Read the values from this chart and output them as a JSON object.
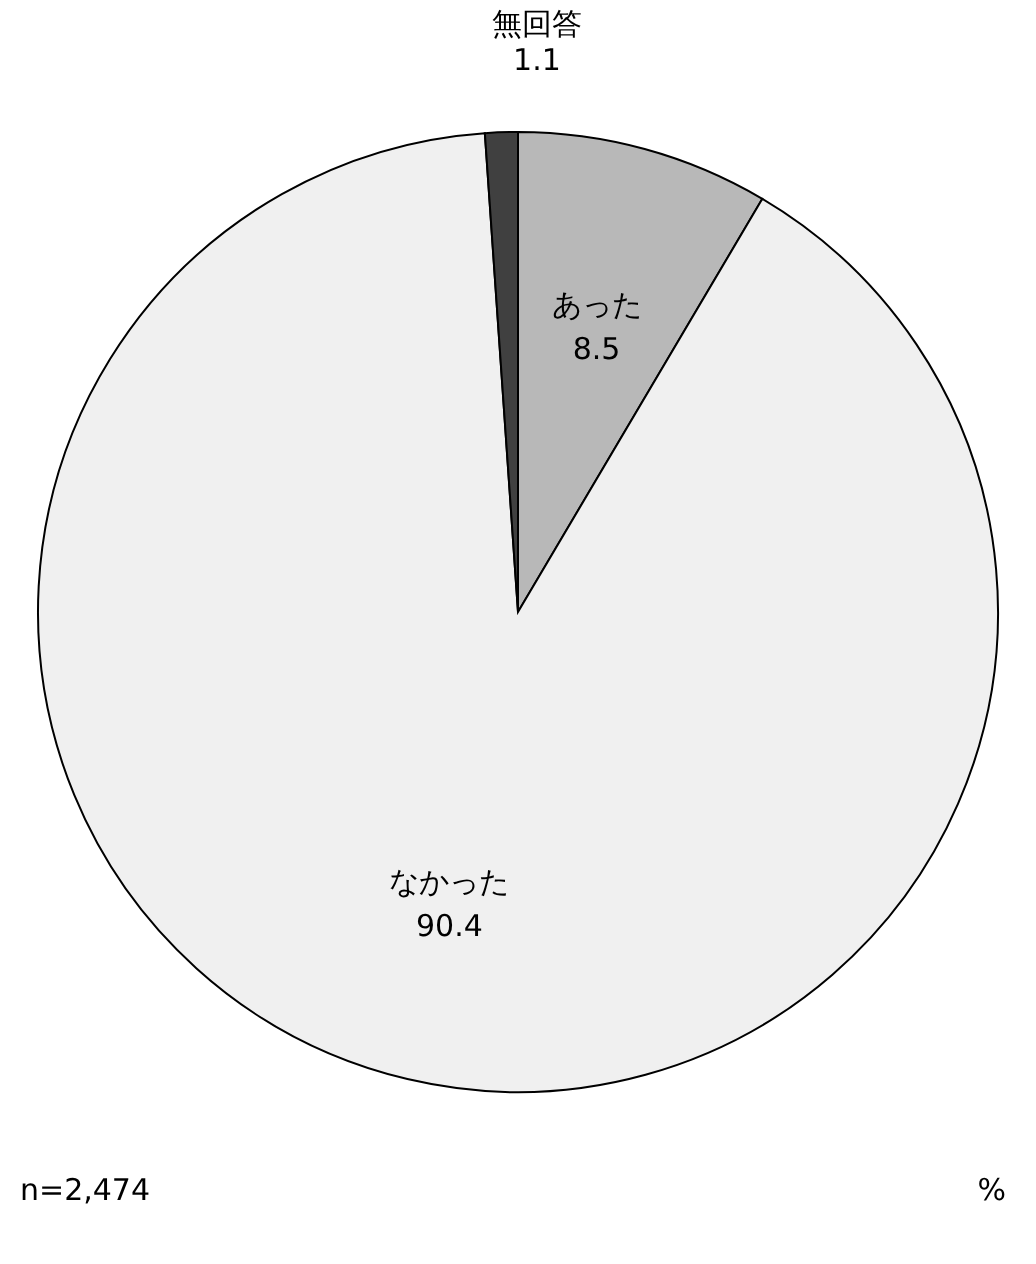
{
  "chart_data": {
    "type": "pie",
    "categories": [
      "あった",
      "なかった",
      "無回答"
    ],
    "values": [
      8.5,
      90.4,
      1.1
    ],
    "colors": [
      "#b8b8b8",
      "#f0f0f0",
      "#404040"
    ],
    "data_labels": true,
    "legend": false,
    "annotations": [
      "n=2,474",
      "%"
    ]
  }
}
